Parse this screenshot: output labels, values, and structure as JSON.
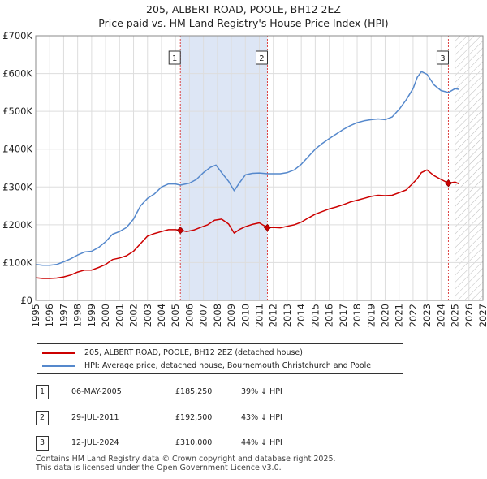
{
  "title": {
    "line1": "205, ALBERT ROAD, POOLE, BH12 2EZ",
    "line2": "Price paid vs. HM Land Registry's House Price Index (HPI)"
  },
  "colors": {
    "property": "#cc0000",
    "hpi": "#5588cc",
    "shade": "#dde6f5",
    "grid": "#dddddd",
    "event_line": "#dd4444"
  },
  "chart_data": {
    "type": "line",
    "xlim": [
      1995,
      2027
    ],
    "ylim": [
      0,
      700000
    ],
    "x_ticks": [
      "1995",
      "1996",
      "1997",
      "1998",
      "1999",
      "2000",
      "2001",
      "2002",
      "2003",
      "2004",
      "2005",
      "2006",
      "2007",
      "2008",
      "2009",
      "2010",
      "2011",
      "2012",
      "2013",
      "2014",
      "2015",
      "2016",
      "2017",
      "2018",
      "2019",
      "2020",
      "2021",
      "2022",
      "2023",
      "2024",
      "2025",
      "2026",
      "2027"
    ],
    "y_ticks": [
      {
        "value": 0,
        "label": "£0"
      },
      {
        "value": 100000,
        "label": "£100K"
      },
      {
        "value": 200000,
        "label": "£200K"
      },
      {
        "value": 300000,
        "label": "£300K"
      },
      {
        "value": 400000,
        "label": "£400K"
      },
      {
        "value": 500000,
        "label": "£500K"
      },
      {
        "value": 600000,
        "label": "£600K"
      },
      {
        "value": 700000,
        "label": "£700K"
      }
    ],
    "shaded_periods": [
      [
        2005.35,
        2011.58
      ]
    ],
    "forecast_start": 2025.0,
    "series": [
      {
        "name": "205, ALBERT ROAD, POOLE, BH12 2EZ (detached house)",
        "key": "property",
        "x": [
          1995.0,
          1995.5,
          1996.0,
          1996.5,
          1997.0,
          1997.5,
          1998.0,
          1998.5,
          1999.0,
          1999.5,
          2000.0,
          2000.5,
          2001.0,
          2001.5,
          2002.0,
          2002.5,
          2003.0,
          2003.5,
          2004.0,
          2004.5,
          2005.0,
          2005.35,
          2005.8,
          2006.3,
          2006.8,
          2007.3,
          2007.8,
          2008.3,
          2008.8,
          2009.2,
          2009.6,
          2010.0,
          2010.5,
          2011.0,
          2011.58,
          2012.0,
          2012.5,
          2013.0,
          2013.5,
          2014.0,
          2014.5,
          2015.0,
          2015.5,
          2016.0,
          2016.5,
          2017.0,
          2017.5,
          2018.0,
          2018.5,
          2019.0,
          2019.5,
          2020.0,
          2020.5,
          2021.0,
          2021.5,
          2022.0,
          2022.3,
          2022.6,
          2023.0,
          2023.5,
          2024.0,
          2024.53,
          2025.0,
          2025.3
        ],
        "y": [
          60000,
          58000,
          58000,
          59000,
          62000,
          67000,
          75000,
          80000,
          80000,
          87000,
          95000,
          108000,
          112000,
          118000,
          130000,
          150000,
          170000,
          177000,
          182000,
          187000,
          187000,
          185250,
          182000,
          186000,
          193000,
          200000,
          212000,
          215000,
          202000,
          178000,
          188000,
          195000,
          201000,
          205000,
          192500,
          193000,
          192000,
          196000,
          200000,
          207000,
          218000,
          228000,
          235000,
          242000,
          247000,
          253000,
          260000,
          265000,
          270000,
          275000,
          278000,
          277000,
          278000,
          285000,
          292000,
          310000,
          322000,
          338000,
          345000,
          330000,
          320000,
          310000,
          313000,
          308000
        ]
      },
      {
        "name": "HPI: Average price, detached house, Bournemouth Christchurch and Poole",
        "key": "hpi",
        "x": [
          1995.0,
          1995.5,
          1996.0,
          1996.5,
          1997.0,
          1997.5,
          1998.0,
          1998.5,
          1999.0,
          1999.5,
          2000.0,
          2000.5,
          2001.0,
          2001.5,
          2002.0,
          2002.5,
          2003.0,
          2003.5,
          2004.0,
          2004.5,
          2005.0,
          2005.35,
          2006.0,
          2006.5,
          2007.0,
          2007.5,
          2007.9,
          2008.3,
          2008.8,
          2009.2,
          2009.6,
          2010.0,
          2010.5,
          2011.0,
          2011.58,
          2012.0,
          2012.5,
          2013.0,
          2013.5,
          2014.0,
          2014.5,
          2015.0,
          2015.5,
          2016.0,
          2016.5,
          2017.0,
          2017.5,
          2018.0,
          2018.5,
          2019.0,
          2019.5,
          2020.0,
          2020.5,
          2021.0,
          2021.5,
          2022.0,
          2022.3,
          2022.6,
          2023.0,
          2023.5,
          2024.0,
          2024.53,
          2025.0,
          2025.3
        ],
        "y": [
          95000,
          93000,
          93000,
          95000,
          102000,
          110000,
          120000,
          128000,
          130000,
          140000,
          155000,
          175000,
          182000,
          193000,
          215000,
          250000,
          270000,
          282000,
          300000,
          308000,
          308000,
          305000,
          310000,
          320000,
          338000,
          352000,
          358000,
          338000,
          315000,
          290000,
          312000,
          332000,
          336000,
          337000,
          335000,
          335000,
          335000,
          338000,
          345000,
          360000,
          380000,
          400000,
          415000,
          428000,
          440000,
          452000,
          462000,
          470000,
          475000,
          478000,
          480000,
          478000,
          485000,
          505000,
          530000,
          560000,
          590000,
          605000,
          598000,
          570000,
          555000,
          550000,
          560000,
          558000
        ]
      }
    ],
    "sale_markers": [
      {
        "label": "1",
        "x": 2005.35,
        "y": 185250
      },
      {
        "label": "2",
        "x": 2011.58,
        "y": 192500
      },
      {
        "label": "3",
        "x": 2024.53,
        "y": 310000
      }
    ]
  },
  "legend": {
    "property_label": "205, ALBERT ROAD, POOLE, BH12 2EZ (detached house)",
    "hpi_label": "HPI: Average price, detached house, Bournemouth Christchurch and Poole"
  },
  "sales": [
    {
      "num": "1",
      "date": "06-MAY-2005",
      "price": "£185,250",
      "hpi_diff": "39% ↓ HPI"
    },
    {
      "num": "2",
      "date": "29-JUL-2011",
      "price": "£192,500",
      "hpi_diff": "43% ↓ HPI"
    },
    {
      "num": "3",
      "date": "12-JUL-2024",
      "price": "£310,000",
      "hpi_diff": "44% ↓ HPI"
    }
  ],
  "footer": {
    "line1": "Contains HM Land Registry data © Crown copyright and database right 2025.",
    "line2": "This data is licensed under the Open Government Licence v3.0."
  }
}
